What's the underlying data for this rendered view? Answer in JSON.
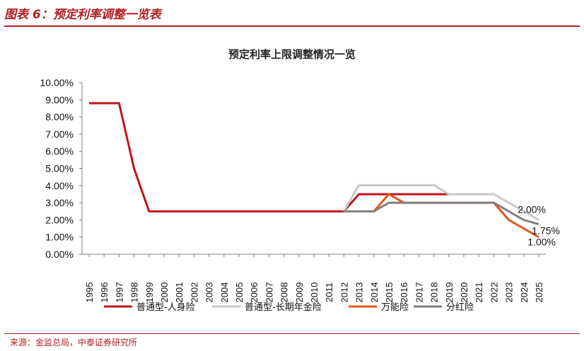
{
  "figure": {
    "title": "图表 6：预定利率调整一览表",
    "source": "来源：金监总局，中泰证券研究所"
  },
  "colors": {
    "accent": "#b01e23"
  },
  "chart_data": {
    "type": "line",
    "title": "预定利率上限调整情况一览",
    "xlabel": "",
    "ylabel": "",
    "x": [
      "1995",
      "1996",
      "1997",
      "1998",
      "1999",
      "2000",
      "2001",
      "2002",
      "2003",
      "2004",
      "2005",
      "2006",
      "2007",
      "2008",
      "2009",
      "2010",
      "2011",
      "2012",
      "2013",
      "2014",
      "2015",
      "2016",
      "2017",
      "2018",
      "2019",
      "2020",
      "2021",
      "2022",
      "2023",
      "2024",
      "2025"
    ],
    "ylim": [
      0,
      10
    ],
    "yticks": [
      "0.00%",
      "1.00%",
      "2.00%",
      "3.00%",
      "4.00%",
      "5.00%",
      "6.00%",
      "7.00%",
      "8.00%",
      "9.00%",
      "10.00%"
    ],
    "grid": false,
    "legend_position": "bottom",
    "series": [
      {
        "name": "普通型-人身险",
        "color": "#c0151b",
        "values": [
          8.8,
          8.8,
          8.8,
          5.0,
          2.5,
          2.5,
          2.5,
          2.5,
          2.5,
          2.5,
          2.5,
          2.5,
          2.5,
          2.5,
          2.5,
          2.5,
          2.5,
          2.5,
          3.5,
          3.5,
          3.5,
          3.5,
          3.5,
          3.5,
          3.5,
          null,
          null,
          null,
          null,
          null,
          null
        ]
      },
      {
        "name": "普通型-长期年金险",
        "color": "#c8c8c8",
        "values": [
          null,
          null,
          null,
          null,
          null,
          null,
          null,
          null,
          null,
          null,
          null,
          null,
          null,
          null,
          null,
          null,
          null,
          2.5,
          4.025,
          4.025,
          4.025,
          4.025,
          4.025,
          4.025,
          3.5,
          3.5,
          3.5,
          3.5,
          3.0,
          2.5,
          2.0
        ]
      },
      {
        "name": "万能险",
        "color": "#e2561f",
        "values": [
          null,
          null,
          null,
          null,
          null,
          null,
          null,
          null,
          null,
          null,
          null,
          null,
          null,
          null,
          null,
          null,
          null,
          null,
          null,
          2.5,
          3.5,
          3.0,
          3.0,
          3.0,
          3.0,
          3.0,
          3.0,
          3.0,
          2.0,
          1.5,
          1.0
        ]
      },
      {
        "name": "分红险",
        "color": "#7f7f7f",
        "values": [
          null,
          null,
          null,
          null,
          null,
          null,
          null,
          null,
          null,
          null,
          null,
          null,
          null,
          null,
          null,
          null,
          null,
          2.5,
          2.5,
          2.5,
          3.0,
          3.0,
          3.0,
          3.0,
          3.0,
          3.0,
          3.0,
          3.0,
          2.5,
          2.0,
          1.75
        ]
      }
    ],
    "annotations": [
      "2.00%",
      "1.75%",
      "1.00%"
    ]
  }
}
